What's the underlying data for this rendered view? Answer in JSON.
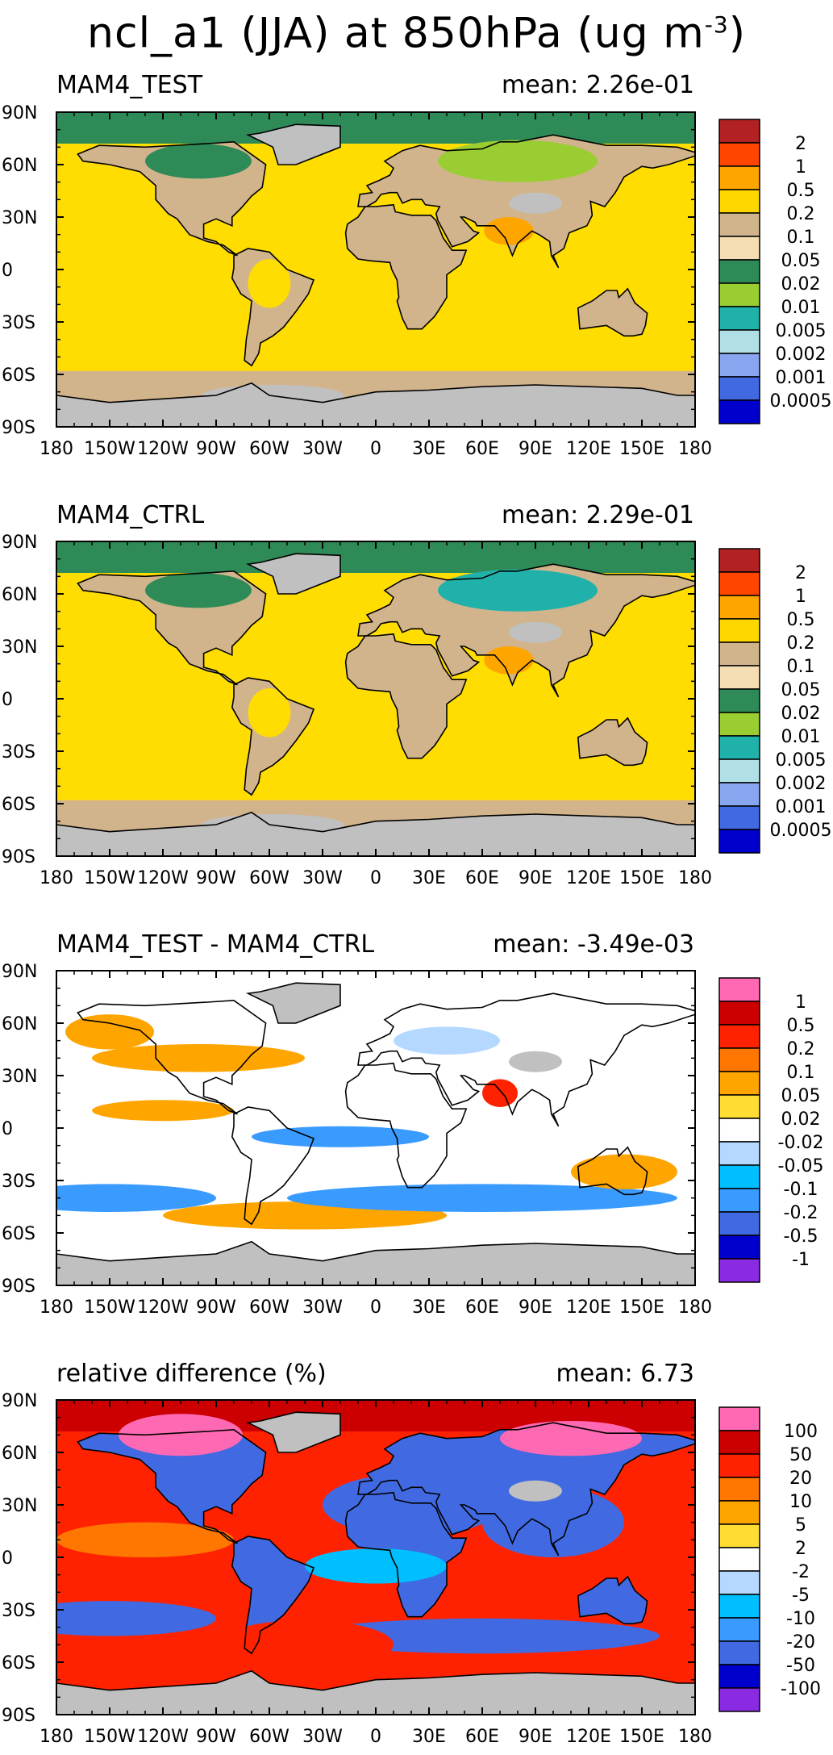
{
  "title": {
    "prefix": "ncl_a1 (JJA) at 850hPa (ug m",
    "exponent": "-3",
    "suffix": ")"
  },
  "axes": {
    "lat_labels": [
      "90N",
      "60N",
      "30N",
      "0",
      "30S",
      "60S",
      "90S"
    ],
    "lon_labels": [
      "180",
      "150W",
      "120W",
      "90W",
      "60W",
      "30W",
      "0",
      "30E",
      "60E",
      "90E",
      "120E",
      "150E",
      "180"
    ]
  },
  "panels": [
    {
      "title": "MAM4_TEST",
      "mean": "mean: 2.26e-01",
      "legend": {
        "labels": [
          "2",
          "1",
          "0.5",
          "0.2",
          "0.1",
          "0.05",
          "0.02",
          "0.01",
          "0.005",
          "0.002",
          "0.001",
          "0.0005"
        ],
        "colors": [
          "#b22222",
          "#ff4500",
          "#ffa500",
          "#ffd700",
          "#d2b48c",
          "#f5deb3",
          "#2e8b57",
          "#9acd32",
          "#20b2aa",
          "#b0e0e6",
          "#87a6ef",
          "#4169e1",
          "#0000cd"
        ]
      },
      "colors": {
        "ocean": "#ffdd00",
        "land": "#d2b48c",
        "pole_north": "#2e8b57",
        "pole_south": "#c0c0c0",
        "accent": "#9acd32",
        "missing": "#c0c0c0"
      }
    },
    {
      "title": "MAM4_CTRL",
      "mean": "mean: 2.29e-01",
      "legend": {
        "labels": [
          "2",
          "1",
          "0.5",
          "0.2",
          "0.1",
          "0.05",
          "0.02",
          "0.01",
          "0.005",
          "0.002",
          "0.001",
          "0.0005"
        ],
        "colors": [
          "#b22222",
          "#ff4500",
          "#ffa500",
          "#ffd700",
          "#d2b48c",
          "#f5deb3",
          "#2e8b57",
          "#9acd32",
          "#20b2aa",
          "#b0e0e6",
          "#87a6ef",
          "#4169e1",
          "#0000cd"
        ]
      },
      "colors": {
        "ocean": "#ffdd00",
        "land": "#d2b48c",
        "pole_north": "#2e8b57",
        "pole_south": "#c0c0c0",
        "accent": "#20b2aa",
        "missing": "#c0c0c0"
      }
    },
    {
      "title": "MAM4_TEST - MAM4_CTRL",
      "mean": "mean: -3.49e-03",
      "legend": {
        "labels": [
          "1",
          "0.5",
          "0.2",
          "0.1",
          "0.05",
          "0.02",
          "-0.02",
          "-0.05",
          "-0.1",
          "-0.2",
          "-0.5",
          "-1"
        ],
        "colors": [
          "#ff69b4",
          "#cc0000",
          "#ff2200",
          "#ff7700",
          "#ffa500",
          "#ffdd33",
          "#ffffff",
          "#b4d8ff",
          "#00bfff",
          "#3a9bff",
          "#4169e1",
          "#0000cd",
          "#8a2be2"
        ]
      },
      "colors": {
        "ocean": "#ffffff",
        "land": "#ffffff",
        "pole_north": "#ffffff",
        "pole_south": "#c0c0c0",
        "pos": "#ffa500",
        "neg": "#3a9bff",
        "missing": "#c0c0c0"
      }
    },
    {
      "title": "relative difference (%)",
      "mean": "mean:  6.73",
      "legend": {
        "labels": [
          "100",
          "50",
          "20",
          "10",
          "5",
          "2",
          "-2",
          "-5",
          "-10",
          "-20",
          "-50",
          "-100"
        ],
        "colors": [
          "#ff69b4",
          "#cc0000",
          "#ff2200",
          "#ff7700",
          "#ffa500",
          "#ffdd33",
          "#ffffff",
          "#b4d8ff",
          "#00bfff",
          "#3a9bff",
          "#4169e1",
          "#0000cd",
          "#8a2be2"
        ]
      },
      "colors": {
        "ocean": "#ff2200",
        "land": "#4169e1",
        "pole_north": "#cc0000",
        "pole_south": "#c0c0c0",
        "pos": "#ff69b4",
        "neg": "#4169e1",
        "missing": "#c0c0c0"
      }
    }
  ]
}
